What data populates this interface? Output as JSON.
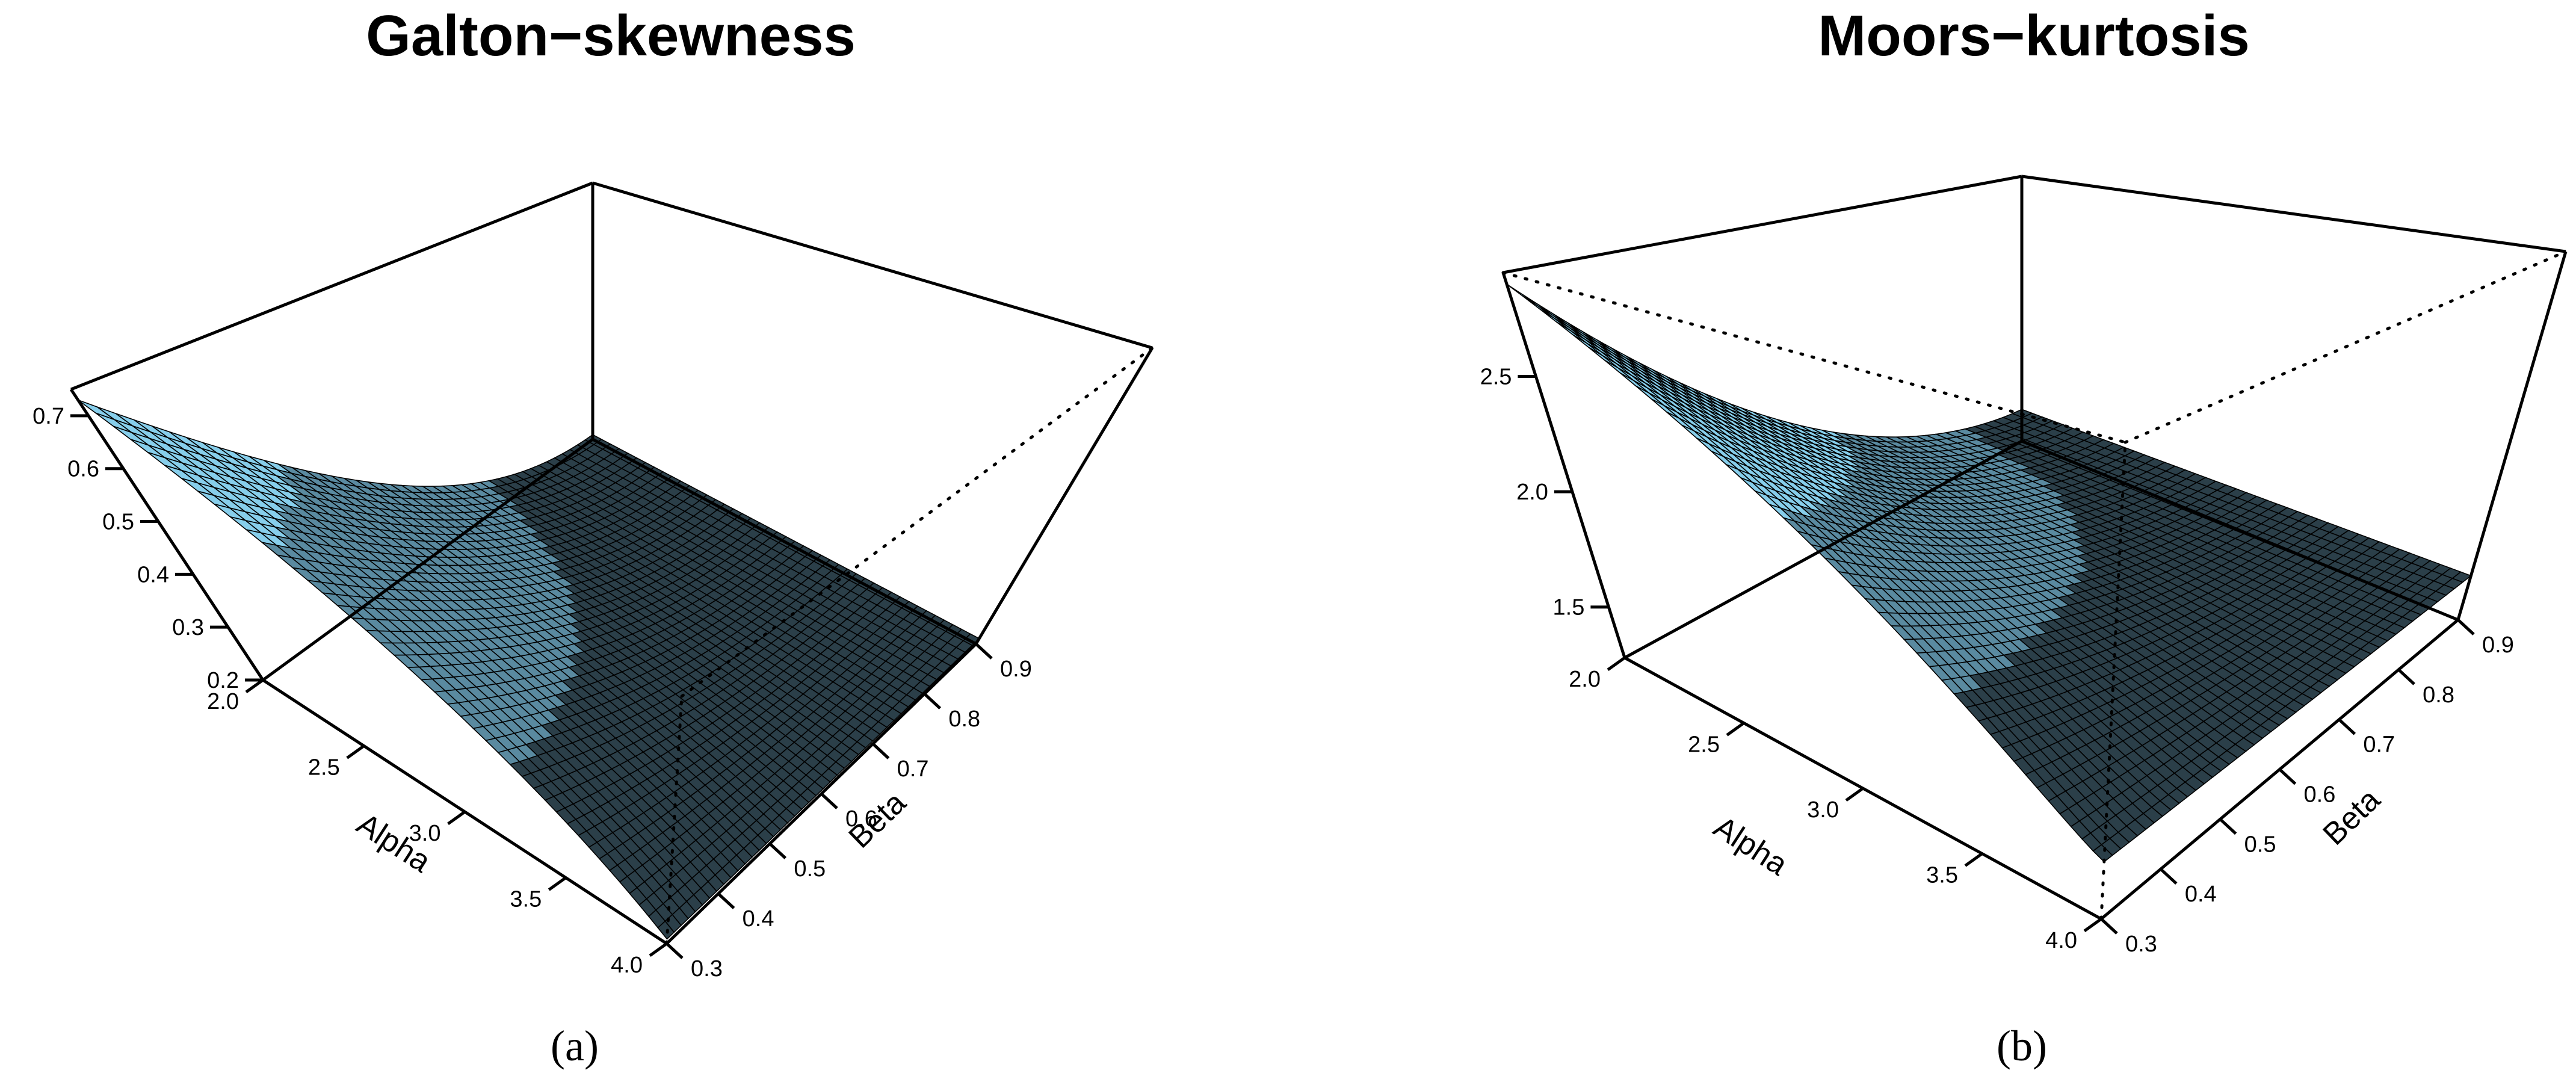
{
  "chart_data": [
    {
      "type": "surface",
      "title": "Galton−skewness",
      "panel_label": "(a)",
      "xlabel": "Alpha",
      "ylabel": "Beta",
      "x_ticks": [
        "2.0",
        "2.5",
        "3.0",
        "3.5",
        "4.0"
      ],
      "y_ticks": [
        "0.3",
        "0.4",
        "0.5",
        "0.6",
        "0.7",
        "0.8",
        "0.9"
      ],
      "z_ticks": [
        "0.2",
        "0.3",
        "0.4",
        "0.5",
        "0.6",
        "0.7"
      ],
      "xlim": [
        2.0,
        4.0
      ],
      "ylim": [
        0.3,
        0.9
      ],
      "zlim": [
        0.2,
        0.75
      ],
      "surface_color": "#87CEEB",
      "corner_values": [
        {
          "alpha": 2.0,
          "beta": 0.3,
          "z": 0.73
        },
        {
          "alpha": 2.0,
          "beta": 0.9,
          "z": 0.21
        },
        {
          "alpha": 4.0,
          "beta": 0.9,
          "z": 0.21
        },
        {
          "alpha": 4.0,
          "beta": 0.3,
          "z": 0.21
        }
      ]
    },
    {
      "type": "surface",
      "title": "Moors−kurtosis",
      "panel_label": "(b)",
      "xlabel": "Alpha",
      "ylabel": "Beta",
      "x_ticks": [
        "2.0",
        "2.5",
        "3.0",
        "3.5",
        "4.0"
      ],
      "y_ticks": [
        "0.3",
        "0.4",
        "0.5",
        "0.6",
        "0.7",
        "0.8",
        "0.9"
      ],
      "z_ticks": [
        "1.5",
        "2.0",
        "2.5"
      ],
      "xlim": [
        2.0,
        4.0
      ],
      "ylim": [
        0.3,
        0.9
      ],
      "zlim": [
        1.28,
        2.95
      ],
      "surface_color": "#87CEEB",
      "corner_values": [
        {
          "alpha": 2.0,
          "beta": 0.3,
          "z": 2.9
        },
        {
          "alpha": 2.0,
          "beta": 0.9,
          "z": 1.48
        },
        {
          "alpha": 4.0,
          "beta": 0.9,
          "z": 1.48
        },
        {
          "alpha": 4.0,
          "beta": 0.3,
          "z": 1.48
        }
      ]
    }
  ]
}
